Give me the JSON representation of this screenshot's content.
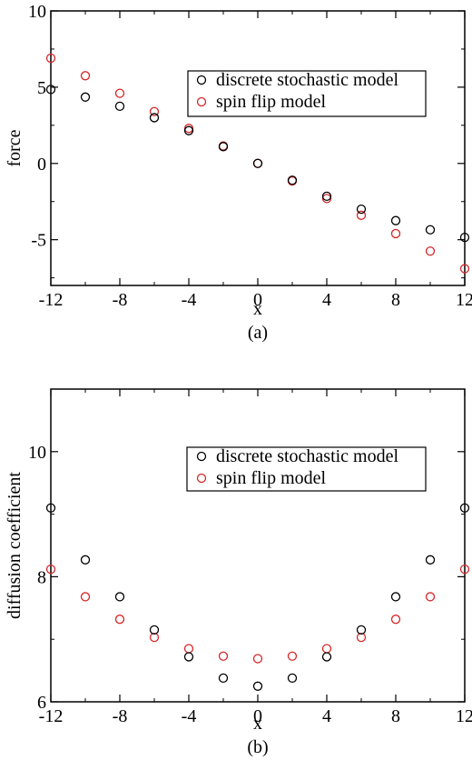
{
  "chart_data": [
    {
      "type": "scatter",
      "panel_label": "(a)",
      "xlabel": "x",
      "ylabel": "force",
      "xlim": [
        -12,
        12
      ],
      "ylim": [
        -8,
        10
      ],
      "xticks": [
        -12,
        -8,
        -4,
        0,
        4,
        8,
        12
      ],
      "xtick_labels": [
        "-12",
        "-8",
        "-4",
        "0",
        "4",
        "8",
        "12"
      ],
      "yticks": [
        -5,
        0,
        5,
        10
      ],
      "ytick_labels": [
        "-5",
        "0",
        "5",
        "10"
      ],
      "grid": false,
      "legend_position": "upper-right",
      "series": [
        {
          "name": "discrete stochastic model",
          "color": "#000000",
          "marker": "open-circle",
          "x": [
            -12,
            -10,
            -8,
            -6,
            -4,
            -2,
            0,
            2,
            4,
            6,
            8,
            10,
            12
          ],
          "y": [
            4.85,
            4.35,
            3.75,
            3.0,
            2.15,
            1.1,
            0.0,
            -1.1,
            -2.15,
            -3.0,
            -3.75,
            -4.35,
            -4.85
          ]
        },
        {
          "name": "spin flip model",
          "color": "#d62728",
          "marker": "open-circle",
          "x": [
            -12,
            -10,
            -8,
            -6,
            -4,
            -2,
            0,
            2,
            4,
            6,
            8,
            10,
            12
          ],
          "y": [
            6.9,
            5.75,
            4.6,
            3.4,
            2.3,
            1.15,
            0.0,
            -1.15,
            -2.3,
            -3.4,
            -4.6,
            -5.75,
            -6.9
          ]
        }
      ]
    },
    {
      "type": "scatter",
      "panel_label": "(b)",
      "xlabel": "x",
      "ylabel": "diffusion coefficient",
      "xlim": [
        -12,
        12
      ],
      "ylim": [
        6,
        11
      ],
      "xticks": [
        -12,
        -8,
        -4,
        0,
        4,
        8,
        12
      ],
      "xtick_labels": [
        "-12",
        "-8",
        "-4",
        "0",
        "4",
        "8",
        "12"
      ],
      "yticks": [
        6,
        8,
        10
      ],
      "ytick_labels": [
        "6",
        "8",
        "10"
      ],
      "grid": false,
      "legend_position": "upper-right",
      "series": [
        {
          "name": "discrete stochastic model",
          "color": "#000000",
          "marker": "open-circle",
          "x": [
            -12,
            -10,
            -8,
            -6,
            -4,
            -2,
            0,
            2,
            4,
            6,
            8,
            10,
            12
          ],
          "y": [
            9.1,
            8.27,
            7.68,
            7.15,
            6.72,
            6.38,
            6.25,
            6.38,
            6.72,
            7.15,
            7.68,
            8.27,
            9.1
          ]
        },
        {
          "name": "spin flip model",
          "color": "#d62728",
          "marker": "open-circle",
          "x": [
            -12,
            -10,
            -8,
            -6,
            -4,
            -2,
            0,
            2,
            4,
            6,
            8,
            10,
            12
          ],
          "y": [
            8.12,
            7.68,
            7.32,
            7.03,
            6.85,
            6.73,
            6.69,
            6.73,
            6.85,
            7.03,
            7.32,
            7.68,
            8.12
          ]
        }
      ]
    }
  ]
}
